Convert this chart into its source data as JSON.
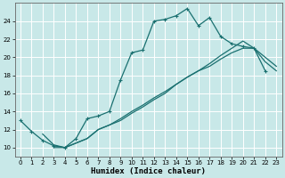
{
  "xlabel": "Humidex (Indice chaleur)",
  "bg_color": "#c8e8e8",
  "grid_color": "#b0d4d4",
  "line_color": "#1a7070",
  "xlim": [
    -0.5,
    23.5
  ],
  "ylim": [
    9.0,
    26.0
  ],
  "xticks": [
    0,
    1,
    2,
    3,
    4,
    5,
    6,
    7,
    8,
    9,
    10,
    11,
    12,
    13,
    14,
    15,
    16,
    17,
    18,
    19,
    20,
    21,
    22,
    23
  ],
  "yticks": [
    10,
    12,
    14,
    16,
    18,
    20,
    22,
    24
  ],
  "line1_x": [
    0,
    1,
    2,
    3,
    4,
    5,
    6,
    7,
    8,
    9,
    10,
    11,
    12,
    13,
    14,
    15,
    16,
    17,
    18,
    19,
    20,
    21,
    22
  ],
  "line1_y": [
    13.0,
    11.8,
    10.8,
    10.2,
    10.0,
    11.0,
    13.2,
    13.5,
    14.0,
    17.5,
    20.5,
    20.8,
    24.0,
    24.2,
    24.6,
    25.4,
    23.5,
    24.4,
    22.3,
    21.5,
    21.2,
    21.0,
    18.5
  ],
  "line2_x": [
    3,
    4,
    5,
    6,
    7,
    8,
    9,
    10,
    11,
    12,
    13,
    14,
    15,
    16,
    17,
    18,
    19,
    20,
    21,
    22,
    23
  ],
  "line2_y": [
    10.0,
    10.0,
    10.5,
    11.0,
    12.0,
    12.5,
    13.0,
    13.8,
    14.5,
    15.3,
    16.0,
    17.0,
    17.8,
    18.5,
    19.3,
    20.2,
    21.0,
    21.8,
    21.0,
    19.5,
    18.5
  ],
  "line3_x": [
    2,
    3,
    4,
    5,
    6,
    7,
    8,
    9,
    10,
    11,
    12,
    13,
    14,
    15,
    16,
    17,
    18,
    19,
    20,
    21,
    22,
    23
  ],
  "line3_y": [
    11.5,
    10.3,
    10.0,
    10.5,
    11.0,
    12.0,
    12.5,
    13.2,
    14.0,
    14.7,
    15.5,
    16.2,
    17.0,
    17.8,
    18.5,
    19.0,
    19.8,
    20.5,
    21.0,
    21.0,
    20.0,
    19.0
  ]
}
